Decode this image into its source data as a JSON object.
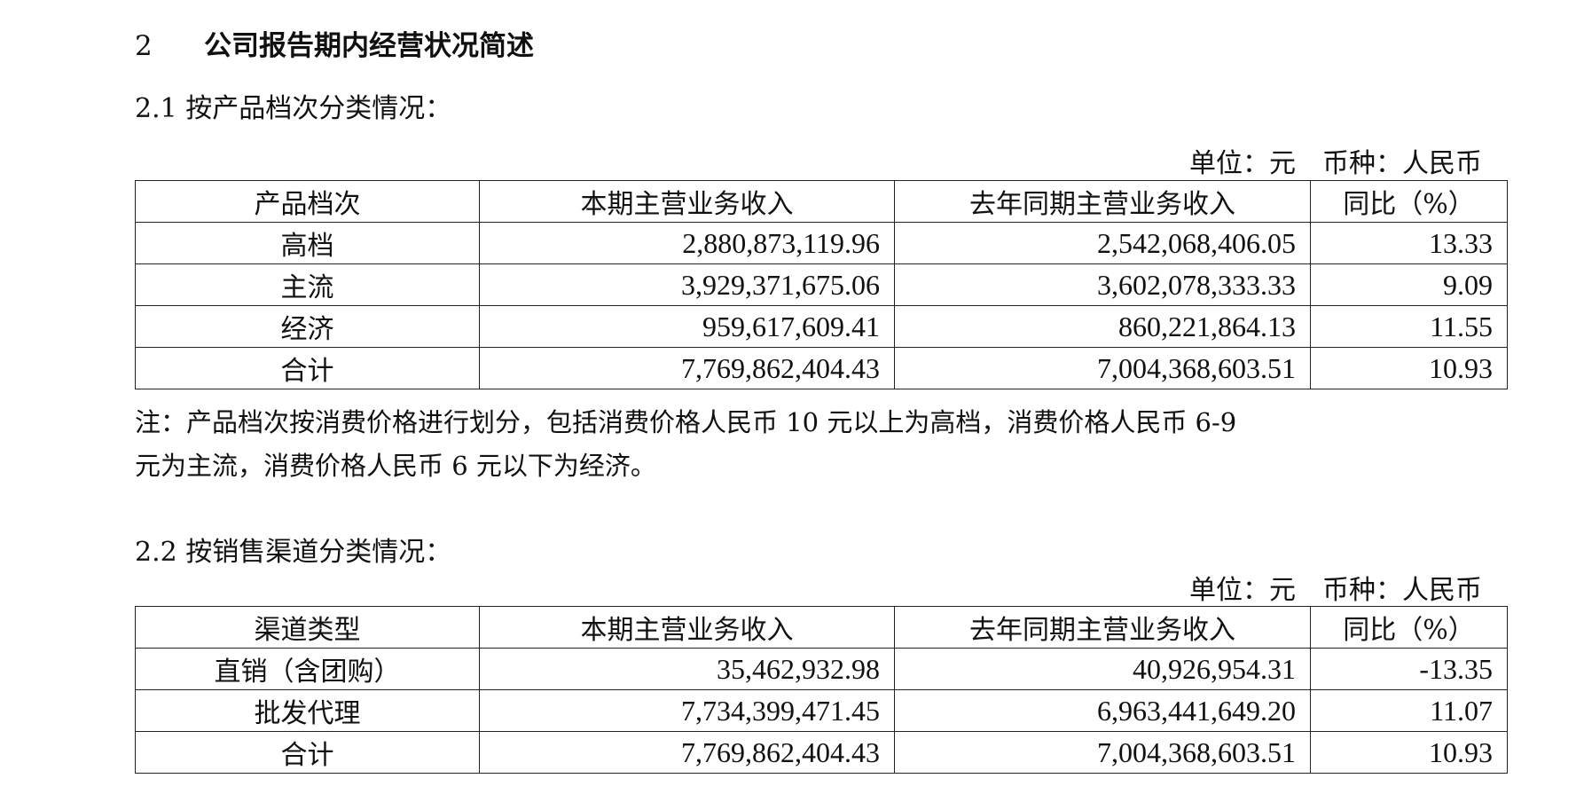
{
  "section": {
    "number": "2",
    "title": "公司报告期内经营状况简述"
  },
  "product_tier": {
    "heading": "2.1 按产品档次分类情况：",
    "unit": "单位：元　币种：人民币",
    "headers": [
      "产品档次",
      "本期主营业务收入",
      "去年同期主营业务收入",
      "同比（%）"
    ],
    "rows": [
      [
        "高档",
        "2,880,873,119.96",
        "2,542,068,406.05",
        "13.33"
      ],
      [
        "主流",
        "3,929,371,675.06",
        "3,602,078,333.33",
        "9.09"
      ],
      [
        "经济",
        "959,617,609.41",
        "860,221,864.13",
        "11.55"
      ],
      [
        "合计",
        "7,769,862,404.43",
        "7,004,368,603.51",
        "10.93"
      ]
    ],
    "note_line1": "注：产品档次按消费价格进行划分，包括消费价格人民币 10 元以上为高档，消费价格人民币 6-9",
    "note_line2": "元为主流，消费价格人民币 6 元以下为经济。"
  },
  "sales_channel": {
    "heading": "2.2 按销售渠道分类情况：",
    "unit": "单位：元　币种：人民币",
    "headers": [
      "渠道类型",
      "本期主营业务收入",
      "去年同期主营业务收入",
      "同比（%）"
    ],
    "rows": [
      [
        "直销（含团购）",
        "35,462,932.98",
        "40,926,954.31",
        "-13.35"
      ],
      [
        "批发代理",
        "7,734,399,471.45",
        "6,963,441,649.20",
        "11.07"
      ],
      [
        "合计",
        "7,769,862,404.43",
        "7,004,368,603.51",
        "10.93"
      ]
    ]
  }
}
